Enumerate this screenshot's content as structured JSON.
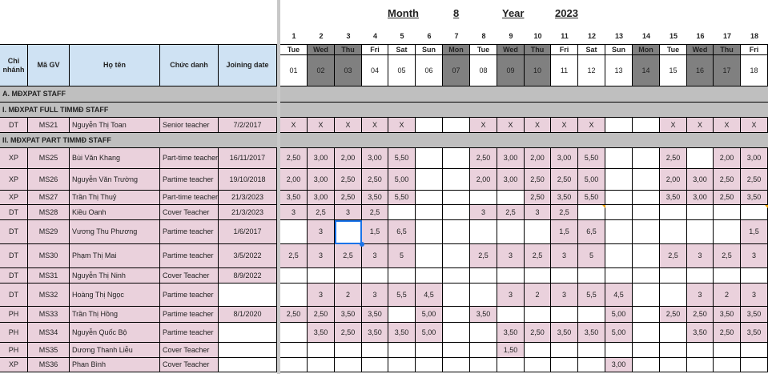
{
  "title": {
    "month_label": "Month",
    "month": "8",
    "year_label": "Year",
    "year": "2023"
  },
  "headers": {
    "branch": "Chi nhánh",
    "code": "Mã GV",
    "name": "Họ tên",
    "position": "Chức danh",
    "joining": "Joining date"
  },
  "colors": {
    "header_bg": "#cfe2f3",
    "section_bg": "#bfbfbf",
    "filled_cell": "#ead1dc",
    "weekend_dark": "#808080"
  },
  "days": [
    {
      "n": "1",
      "wd": "Tue",
      "d": "01",
      "dark": false
    },
    {
      "n": "2",
      "wd": "Wed",
      "d": "02",
      "dark": true
    },
    {
      "n": "3",
      "wd": "Thu",
      "d": "03",
      "dark": true
    },
    {
      "n": "4",
      "wd": "Fri",
      "d": "04",
      "dark": false
    },
    {
      "n": "5",
      "wd": "Sat",
      "d": "05",
      "dark": false
    },
    {
      "n": "6",
      "wd": "Sun",
      "d": "06",
      "dark": false
    },
    {
      "n": "7",
      "wd": "Mon",
      "d": "07",
      "dark": true
    },
    {
      "n": "8",
      "wd": "Tue",
      "d": "08",
      "dark": false
    },
    {
      "n": "9",
      "wd": "Wed",
      "d": "09",
      "dark": true
    },
    {
      "n": "10",
      "wd": "Thu",
      "d": "10",
      "dark": true
    },
    {
      "n": "11",
      "wd": "Fri",
      "d": "11",
      "dark": false
    },
    {
      "n": "12",
      "wd": "Sat",
      "d": "12",
      "dark": false
    },
    {
      "n": "13",
      "wd": "Sun",
      "d": "13",
      "dark": false
    },
    {
      "n": "14",
      "wd": "Mon",
      "d": "14",
      "dark": true
    },
    {
      "n": "15",
      "wd": "Tue",
      "d": "15",
      "dark": false
    },
    {
      "n": "16",
      "wd": "Wed",
      "d": "16",
      "dark": true
    },
    {
      "n": "17",
      "wd": "Thu",
      "d": "17",
      "dark": true
    },
    {
      "n": "18",
      "wd": "Fri",
      "d": "18",
      "dark": false
    }
  ],
  "rows": [
    {
      "type": "section",
      "label": "A. MĐXPAT STAFF"
    },
    {
      "type": "section",
      "label": "I. MĐXPAT FULL TIMMĐ STAFF"
    },
    {
      "type": "staff",
      "branch": "DT",
      "code": "MS21",
      "name": "Nguyễn Thị Toan",
      "position": "Senior teacher",
      "joining": "7/2/2017",
      "cells": [
        "X",
        "X",
        "X",
        "X",
        "X",
        "",
        "",
        "X",
        "X",
        "X",
        "X",
        "X",
        "",
        "",
        "X",
        "X",
        "X",
        "X"
      ]
    },
    {
      "type": "section",
      "label": "II. MĐXPAT PART TIMMĐ STAFF"
    },
    {
      "type": "staff",
      "branch": "XP",
      "code": "MS25",
      "name": "Bùi Văn Khang",
      "position": "Part-time teacher",
      "joining": "16/11/2017",
      "cells": [
        "2,50",
        "3,00",
        "2,00",
        "3,00",
        "5,50",
        "",
        "",
        "2,50",
        "3,00",
        "2,00",
        "3,00",
        "5,50",
        "",
        "",
        "2,50",
        "",
        "2,00",
        "3,00"
      ]
    },
    {
      "type": "staff",
      "branch": "XP",
      "code": "MS26",
      "name": "Nguyễn Văn Trường",
      "position": "Partime teacher",
      "joining": "19/10/2018",
      "cells": [
        "2,00",
        "3,00",
        "2,50",
        "2,50",
        "5,00",
        "",
        "",
        "2,00",
        "3,00",
        "2,50",
        "2,50",
        "5,00",
        "",
        "",
        "2,00",
        "3,00",
        "2,50",
        "2,50"
      ]
    },
    {
      "type": "staff",
      "branch": "XP",
      "code": "MS27",
      "name": "Trần Thị Thuỷ",
      "position": "Part-time teacher",
      "joining": "21/3/2023",
      "cells": [
        "3,50",
        "3,00",
        "2,50",
        "3,50",
        "5,50",
        "",
        "",
        "",
        "",
        "2,50",
        "3,50",
        "5,50",
        "",
        "",
        "3,50",
        "3,00",
        "2,50",
        "3,50"
      ]
    },
    {
      "type": "staff",
      "branch": "DT",
      "code": "MS28",
      "name": "Kiều Oanh",
      "position": "Cover Teacher",
      "joining": "21/3/2023",
      "cells": [
        "3",
        "2,5",
        "3",
        "2,5",
        "",
        "",
        "",
        "3",
        "2,5",
        "3",
        "2,5",
        "",
        "",
        "",
        "",
        "",
        "",
        ""
      ]
    },
    {
      "type": "staff",
      "branch": "DT",
      "code": "MS29",
      "name": "Vương Thu Phương",
      "position": "Partime teacher",
      "joining": "1/6/2017",
      "cells": [
        "",
        "3",
        "",
        "1,5",
        "6,5",
        "",
        "",
        "",
        "",
        "",
        "1,5",
        "6,5",
        "",
        "",
        "",
        "",
        "",
        "1,5"
      ]
    },
    {
      "type": "staff",
      "branch": "DT",
      "code": "MS30",
      "name": "Phạm Thị Mai",
      "position": "Partime teacher",
      "joining": "3/5/2022",
      "cells": [
        "2,5",
        "3",
        "2,5",
        "3",
        "5",
        "",
        "",
        "2,5",
        "3",
        "2,5",
        "3",
        "5",
        "",
        "",
        "2,5",
        "3",
        "2,5",
        "3"
      ]
    },
    {
      "type": "staff",
      "branch": "DT",
      "code": "MS31",
      "name": "Nguyễn Thị Ninh",
      "position": "Cover Teacher",
      "joining": "8/9/2022",
      "cells": [
        "",
        "",
        "",
        "",
        "",
        "",
        "",
        "",
        "",
        "",
        "",
        "",
        "",
        "",
        "",
        "",
        "",
        ""
      ]
    },
    {
      "type": "staff",
      "branch": "DT",
      "code": "MS32",
      "name": "Hoàng Thị Ngọc",
      "position": "Partime teacher",
      "joining": "",
      "cells": [
        "",
        "3",
        "2",
        "3",
        "5,5",
        "4,5",
        "",
        "",
        "3",
        "2",
        "3",
        "5,5",
        "4,5",
        "",
        "",
        "3",
        "2",
        "3"
      ]
    },
    {
      "type": "staff",
      "branch": "PH",
      "code": "MS33",
      "name": "Trần Thị Hồng",
      "position": "Partime teacher",
      "joining": "8/1/2020",
      "cells": [
        "2,50",
        "2,50",
        "3,50",
        "3,50",
        "",
        "5,00",
        "",
        "3,50",
        "",
        "",
        "",
        "",
        "5,00",
        "",
        "2,50",
        "2,50",
        "3,50",
        "3,50"
      ]
    },
    {
      "type": "staff",
      "branch": "PH",
      "code": "MS34",
      "name": "Nguyễn Quốc Bộ",
      "position": "Partime teacher",
      "joining": "",
      "cells": [
        "",
        "3,50",
        "2,50",
        "3,50",
        "3,50",
        "5,00",
        "",
        "",
        "3,50",
        "2,50",
        "3,50",
        "3,50",
        "5,00",
        "",
        "",
        "3,50",
        "2,50",
        "3,50"
      ]
    },
    {
      "type": "staff",
      "branch": "PH",
      "code": "MS35",
      "name": "Dương Thanh Liễu",
      "position": "Cover Teacher",
      "joining": "",
      "cells": [
        "",
        "",
        "",
        "",
        "",
        "",
        "",
        "",
        "1,50",
        "",
        "",
        "",
        "",
        "",
        "",
        "",
        "",
        ""
      ]
    },
    {
      "type": "staff",
      "branch": "XP",
      "code": "MS36",
      "name": "Phan Bình",
      "position": "Cover Teacher",
      "joining": "",
      "cells": [
        "",
        "",
        "",
        "",
        "",
        "",
        "",
        "",
        "",
        "",
        "",
        "",
        "3,00",
        "",
        "",
        "",
        "",
        ""
      ]
    }
  ]
}
